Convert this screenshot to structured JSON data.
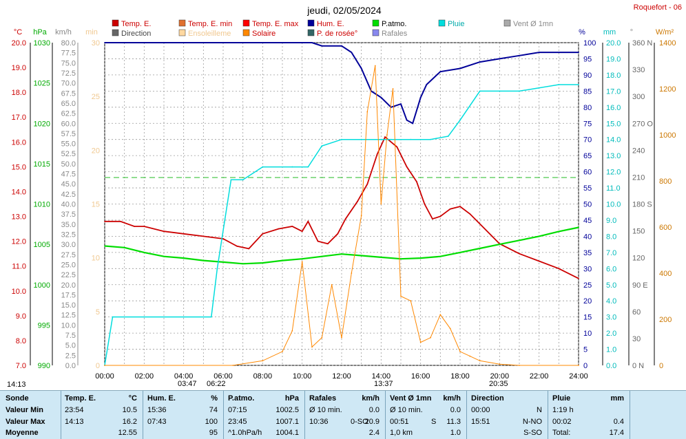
{
  "title": "jeudi, 02/05/2024",
  "station": "Roquefort - 06",
  "legend": [
    {
      "label": "Temp. E.",
      "color": "#cc0000"
    },
    {
      "label": "Temp. E. min",
      "color": "#e07030"
    },
    {
      "label": "Temp. E. max",
      "color": "#ff0000"
    },
    {
      "label": "Hum. E.",
      "color": "#000099"
    },
    {
      "label": "P.atmo.",
      "color": "#00dd00"
    },
    {
      "label": "Pluie",
      "color": "#00dddd"
    },
    {
      "label": "Vent Ø 1mn",
      "color": "#aaaaaa"
    },
    {
      "label": "Direction",
      "color": "#666666"
    },
    {
      "label": "Ensoleilleme",
      "color": "#ffd8a0"
    },
    {
      "label": "Solaire",
      "color": "#ff8800"
    },
    {
      "label": "P. de rosée°",
      "color": "#336666"
    },
    {
      "label": "Rafales",
      "color": "#8888ee"
    }
  ],
  "axes_units": {
    "temp": "°C",
    "press": "hPa",
    "wind": "km/h",
    "min": "min",
    "hum": "%",
    "rain": "mm",
    "dir": "°",
    "solar": "W/m²"
  },
  "axes_ticks": {
    "temp": [
      "7.0",
      "8.0",
      "9.0",
      "10.0",
      "11.0",
      "12.0",
      "13.0",
      "14.0",
      "15.0",
      "16.0",
      "17.0",
      "18.0",
      "19.0",
      "20.0"
    ],
    "press": [
      "990",
      "995",
      "1000",
      "1005",
      "1010",
      "1015",
      "1020",
      "1025",
      "1030"
    ],
    "wind": [
      "0.0",
      "2.5",
      "5.0",
      "7.5",
      "10.0",
      "12.5",
      "15.0",
      "17.5",
      "20.0",
      "22.5",
      "25.0",
      "27.5",
      "30.0",
      "32.5",
      "35.0",
      "37.5",
      "40.0",
      "42.5",
      "45.0",
      "47.5",
      "50.0",
      "52.5",
      "55.0",
      "57.5",
      "60.0",
      "62.5",
      "65.0",
      "67.5",
      "70.0",
      "72.5",
      "75.0",
      "77.5",
      "80.0"
    ],
    "minutes": [
      "0",
      "5",
      "10",
      "15",
      "20",
      "25",
      "30"
    ],
    "hum": [
      "0",
      "5",
      "10",
      "15",
      "20",
      "25",
      "30",
      "35",
      "40",
      "45",
      "50",
      "55",
      "60",
      "65",
      "70",
      "75",
      "80",
      "85",
      "90",
      "95",
      "100"
    ],
    "rain": [
      "0.0",
      "1.0",
      "2.0",
      "3.0",
      "4.0",
      "5.0",
      "6.0",
      "7.0",
      "8.0",
      "9.0",
      "10.0",
      "11.0",
      "12.0",
      "13.0",
      "14.0",
      "15.0",
      "16.0",
      "17.0",
      "18.0",
      "19.0",
      "20.0"
    ],
    "dir": [
      "0 N",
      "30",
      "60",
      "90 E",
      "120",
      "150",
      "180 S",
      "210",
      "240",
      "270 O",
      "300",
      "330",
      "360 N"
    ],
    "solar": [
      "0",
      "200",
      "400",
      "600",
      "800",
      "1000",
      "1200",
      "1400"
    ]
  },
  "x_ticks": [
    "00:00",
    "02:00",
    "04:00",
    "06:00",
    "08:00",
    "10:00",
    "12:00",
    "14:00",
    "16:00",
    "18:00",
    "20:00",
    "22:00",
    "24:00"
  ],
  "x_markers": [
    "14:13",
    "03:47",
    "06:22",
    "13:37",
    "20:35"
  ],
  "chart_data": {
    "type": "line",
    "x_range": [
      "00:00",
      "24:00"
    ],
    "series": [
      {
        "name": "Temp. E.",
        "unit": "°C",
        "x_hours": [
          0,
          0.8,
          1.5,
          2,
          3,
          4,
          5,
          6,
          6.7,
          7.3,
          8,
          8.8,
          9.5,
          10,
          10.3,
          10.8,
          11.3,
          11.8,
          12.2,
          12.8,
          13.3,
          13.8,
          14.2,
          14.8,
          15.3,
          15.8,
          16.2,
          16.6,
          17,
          17.5,
          18,
          18.5,
          19,
          20,
          21,
          22,
          23,
          24
        ],
        "values": [
          12.8,
          12.8,
          12.6,
          12.6,
          12.4,
          12.3,
          12.2,
          12.1,
          11.8,
          11.7,
          12.3,
          12.5,
          12.6,
          12.4,
          12.8,
          12.0,
          11.9,
          12.3,
          12.9,
          13.6,
          14.3,
          15.5,
          16.2,
          15.8,
          15.0,
          14.4,
          13.5,
          12.9,
          13.0,
          13.3,
          13.4,
          13.1,
          12.7,
          11.9,
          11.5,
          11.2,
          10.9,
          10.5
        ]
      },
      {
        "name": "Hum. E.",
        "unit": "%",
        "x_hours": [
          0,
          3,
          6,
          8,
          10.5,
          11,
          12,
          12.5,
          13,
          13.5,
          14,
          14.5,
          15,
          15.3,
          15.6,
          16,
          16.3,
          17,
          18,
          19,
          20,
          21,
          22,
          24
        ],
        "values": [
          100,
          100,
          100,
          100,
          100,
          99,
          99,
          97,
          92,
          85,
          83,
          80,
          81,
          76,
          75,
          83,
          87,
          91,
          92,
          94,
          95,
          96,
          97,
          97
        ]
      },
      {
        "name": "P.atmo.",
        "unit": "hPa",
        "x_hours": [
          0,
          1,
          2,
          3,
          4,
          5,
          6,
          7,
          8,
          9,
          10,
          11,
          12,
          13,
          14,
          15,
          16,
          17,
          18,
          19,
          20,
          21,
          22,
          23,
          24
        ],
        "values": [
          1004.8,
          1004.6,
          1004.0,
          1003.5,
          1003.3,
          1003.0,
          1002.8,
          1002.6,
          1002.7,
          1003.0,
          1003.2,
          1003.5,
          1003.8,
          1003.6,
          1003.4,
          1003.2,
          1003.3,
          1003.5,
          1004.0,
          1004.5,
          1005.0,
          1005.5,
          1006.0,
          1006.6,
          1007.1
        ],
        "note": "Valeur Min 1002.5 à 07:15, Valeur Max 1007.1 à 23:45"
      },
      {
        "name": "Pluie",
        "unit": "mm",
        "x_hours": [
          0,
          0.4,
          2,
          4,
          5.4,
          5.7,
          6.4,
          7,
          8,
          9.5,
          10.3,
          11,
          12,
          13,
          14,
          14.5,
          15.5,
          16.5,
          17.4,
          18,
          19,
          20,
          21,
          22,
          23,
          24
        ],
        "values": [
          0,
          3.0,
          3.0,
          3.0,
          3.0,
          6.0,
          11.5,
          11.5,
          12.3,
          12.3,
          12.3,
          13.6,
          14.0,
          14.0,
          14.0,
          14.0,
          14.0,
          14.0,
          14.2,
          15.2,
          17.0,
          17.0,
          17.0,
          17.2,
          17.4,
          17.4
        ]
      },
      {
        "name": "Solaire",
        "unit": "W/m²",
        "x_hours": [
          0,
          6.5,
          8,
          9,
          9.5,
          10,
          10.5,
          11,
          11.5,
          12,
          12.5,
          13,
          13.3,
          13.7,
          14,
          14.3,
          14.6,
          15,
          15.5,
          16,
          16.5,
          17,
          17.5,
          18,
          18.5,
          19,
          20,
          21,
          24
        ],
        "values": [
          0,
          0,
          20,
          60,
          150,
          450,
          80,
          120,
          350,
          120,
          400,
          650,
          1100,
          1300,
          700,
          1000,
          1200,
          300,
          280,
          100,
          120,
          220,
          160,
          60,
          40,
          20,
          5,
          0,
          0
        ]
      }
    ],
    "summary_table": {
      "row_labels": [
        "Sonde",
        "Valeur Min",
        "Valeur Max",
        "Moyenne"
      ],
      "columns": [
        {
          "label": "Temp. E.",
          "unit": "°C",
          "min": {
            "time": "23:54",
            "value": "10.5"
          },
          "max": {
            "time": "14:13",
            "value": "16.2"
          },
          "avg": {
            "value": "12.55"
          }
        },
        {
          "label": "Hum. E.",
          "unit": "%",
          "min": {
            "time": "15:36",
            "value": "74"
          },
          "max": {
            "time": "07:43",
            "value": "100"
          },
          "avg": {
            "value": "95"
          }
        },
        {
          "label": "P.atmo.",
          "unit": "hPa",
          "min": {
            "time": "07:15",
            "value": "1002.5"
          },
          "max": {
            "time": "23:45",
            "value": "1007.1"
          },
          "avg": {
            "time": "^1.0hPa/h",
            "value": "1004.1"
          }
        },
        {
          "label": "Rafales",
          "unit": "km/h",
          "min": {
            "time": "Ø 10 min.",
            "value": "0.0"
          },
          "max": {
            "time": "10:36",
            "extra": "0-SO",
            "value": "20.9"
          },
          "avg": {
            "value": "2.4"
          }
        },
        {
          "label": "Vent Ø 1mn",
          "unit": "km/h",
          "min": {
            "time": "Ø 10 min.",
            "value": "0.0"
          },
          "max": {
            "time": "00:51",
            "extra": "S",
            "value": "11.3"
          },
          "avg": {
            "time": "1,0 km",
            "value": "1.0"
          }
        },
        {
          "label": "Direction",
          "unit": "",
          "min": {
            "time": "00:00",
            "value": "N"
          },
          "max": {
            "time": "15:51",
            "value": "N-NO"
          },
          "avg": {
            "value": "S-SO"
          }
        },
        {
          "label": "Pluie",
          "unit": "mm",
          "min": {
            "time": "1:19 h",
            "value": ""
          },
          "max": {
            "time": "00:02",
            "value": "0.4"
          },
          "avg": {
            "time": "Total:",
            "value": "17.4"
          }
        }
      ]
    }
  }
}
